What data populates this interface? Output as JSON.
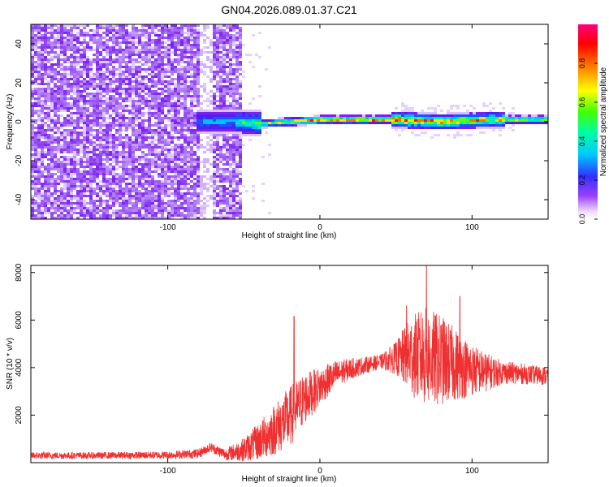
{
  "title": "GN04.2026.089.01.37.C21",
  "colors": {
    "snr_line": "#f03030",
    "spectrogram_noise": "#7b22f0",
    "spectrogram_haze": "#c9a8f8"
  },
  "chart_data": [
    {
      "type": "heatmap",
      "xlabel": "Height of straight line (km)",
      "ylabel": "Frequency (Hz)",
      "xlim": [
        -190,
        150
      ],
      "ylim": [
        -50,
        50
      ],
      "xticks": [
        -100,
        0,
        100
      ],
      "yticks": [
        -40,
        -20,
        0,
        20,
        40
      ],
      "colorbar": {
        "label": "Normalized spectral amplitude",
        "range": [
          0,
          1
        ],
        "ticks": [
          0.0,
          0.2,
          0.4,
          0.6,
          0.8
        ],
        "colormap": "rainbow"
      },
      "features": {
        "broadband_noise_x": [
          -190,
          -52
        ],
        "noise_gap_x": [
          -80,
          -72
        ],
        "signal_ridge": [
          {
            "x": -82,
            "f": 0,
            "amp": 0.45
          },
          {
            "x": -60,
            "f": 0,
            "amp": 0.5
          },
          {
            "x": -40,
            "f": -1,
            "amp": 0.7
          },
          {
            "x": -20,
            "f": 0,
            "amp": 0.85
          },
          {
            "x": 0,
            "f": 1,
            "amp": 0.95
          },
          {
            "x": 50,
            "f": 1,
            "amp": 1.0
          },
          {
            "x": 80,
            "f": 0,
            "amp": 0.9
          },
          {
            "x": 110,
            "f": 1,
            "amp": 0.85
          },
          {
            "x": 150,
            "f": 1,
            "amp": 0.8
          }
        ]
      }
    },
    {
      "type": "line",
      "xlabel": "Height of straight line (km)",
      "ylabel": "SNR (10 * v/v)",
      "xlim": [
        -190,
        150
      ],
      "ylim": [
        0,
        8300
      ],
      "xticks": [
        -100,
        0,
        100
      ],
      "yticks": [
        2000,
        4000,
        6000,
        8000
      ],
      "series_envelope": {
        "x": [
          -190,
          -150,
          -100,
          -80,
          -72,
          -62,
          -50,
          -40,
          -30,
          -20,
          -10,
          0,
          10,
          20,
          30,
          40,
          50,
          60,
          70,
          80,
          90,
          100,
          110,
          120,
          130,
          140,
          150
        ],
        "mean": [
          300,
          300,
          320,
          380,
          650,
          350,
          550,
          900,
          1400,
          1900,
          2700,
          3200,
          3700,
          3950,
          4100,
          4250,
          4400,
          4500,
          4450,
          4300,
          4100,
          3900,
          3800,
          3800,
          3750,
          3700,
          3650
        ],
        "spread": [
          150,
          140,
          160,
          200,
          200,
          250,
          500,
          800,
          1100,
          1300,
          1100,
          800,
          600,
          450,
          350,
          300,
          700,
          1700,
          2100,
          1900,
          1500,
          1100,
          800,
          500,
          450,
          400,
          400
        ]
      },
      "spikes": [
        {
          "x": -17,
          "y": 6150
        },
        {
          "x": 57,
          "y": 6600
        },
        {
          "x": 70,
          "y": 8300
        },
        {
          "x": 92,
          "y": 7000
        }
      ]
    }
  ]
}
